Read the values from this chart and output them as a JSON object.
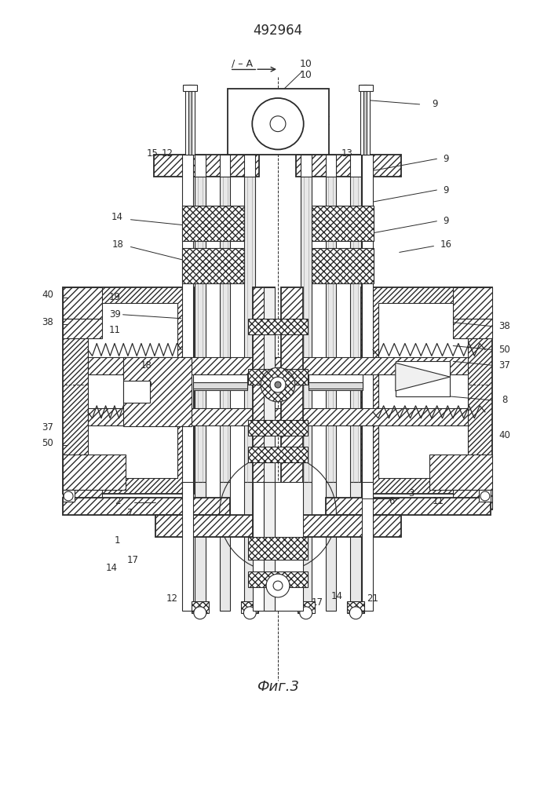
{
  "title": "492964",
  "caption": "Фиг.3",
  "section_label": "/ – A",
  "bg_color": "#ffffff",
  "line_color": "#2a2a2a",
  "label_fontsize": 8.5,
  "title_fontsize": 12,
  "caption_fontsize": 13
}
